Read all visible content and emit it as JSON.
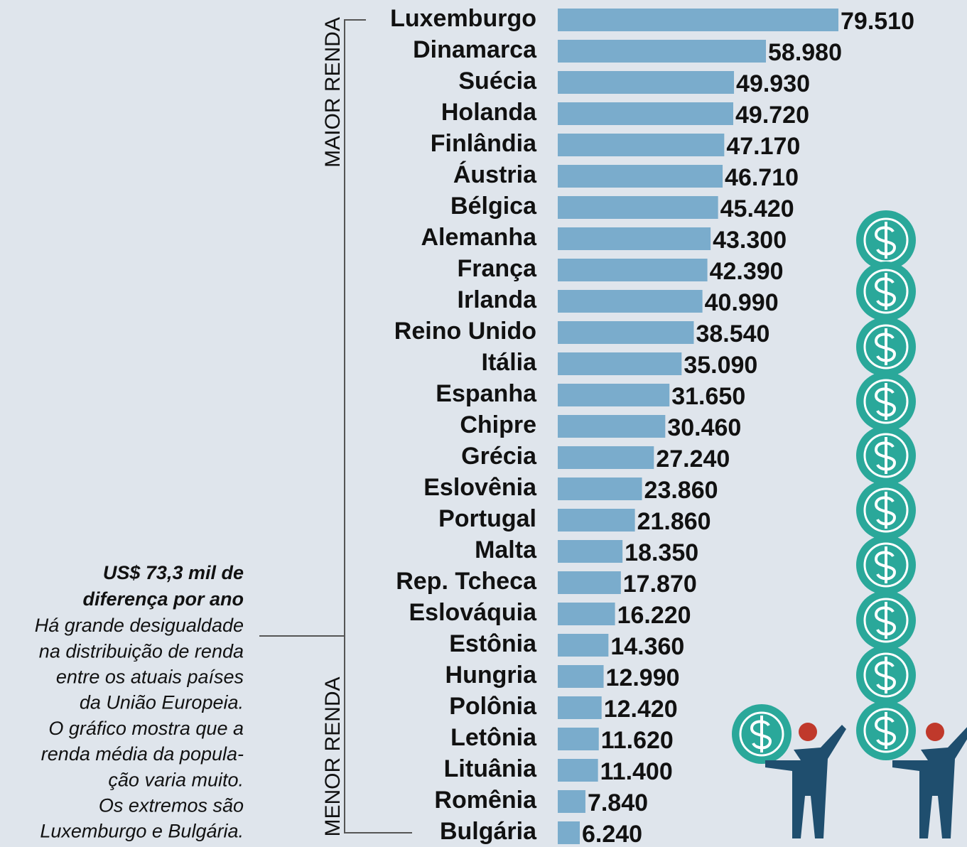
{
  "chart_data": {
    "type": "bar",
    "orientation": "horizontal",
    "color": "#7aaccc",
    "categories": [
      "Luxemburgo",
      "Dinamarca",
      "Suécia",
      "Holanda",
      "Finlândia",
      "Áustria",
      "Bélgica",
      "Alemanha",
      "França",
      "Irlanda",
      "Reino Unido",
      "Itália",
      "Espanha",
      "Chipre",
      "Grécia",
      "Eslovênia",
      "Portugal",
      "Malta",
      "Rep. Tcheca",
      "Eslováquia",
      "Estônia",
      "Hungria",
      "Polônia",
      "Letônia",
      "Lituânia",
      "Romênia",
      "Bulgária"
    ],
    "values": [
      79510,
      58980,
      49930,
      49720,
      47170,
      46710,
      45420,
      43300,
      42390,
      40990,
      38540,
      35090,
      31650,
      30460,
      27240,
      23860,
      21860,
      18350,
      17870,
      16220,
      14360,
      12990,
      12420,
      11620,
      11400,
      7840,
      6240
    ],
    "value_labels": [
      "79.510",
      "58.980",
      "49.930",
      "49.720",
      "47.170",
      "46.710",
      "45.420",
      "43.300",
      "42.390",
      "40.990",
      "38.540",
      "35.090",
      "31.650",
      "30.460",
      "27.240",
      "23.860",
      "21.860",
      "18.350",
      "17.870",
      "16.220",
      "14.360",
      "12.990",
      "12.420",
      "11.620",
      "11.400",
      "7.840",
      "6.240"
    ],
    "group_labels": [
      "MAIOR RENDA",
      "MENOR RENDA"
    ],
    "annotation": {
      "heading": [
        "US$ 73,3 mil de",
        "diferença por ano"
      ],
      "body": [
        "Há grande desigualdade",
        "na distribuição de renda",
        "entre os atuais países",
        "da União Europeia.",
        "O gráfico mostra que a",
        "renda média da popula-",
        "ção varia muito.",
        "Os extremos são",
        "Luxemburgo e Bulgária."
      ]
    }
  }
}
